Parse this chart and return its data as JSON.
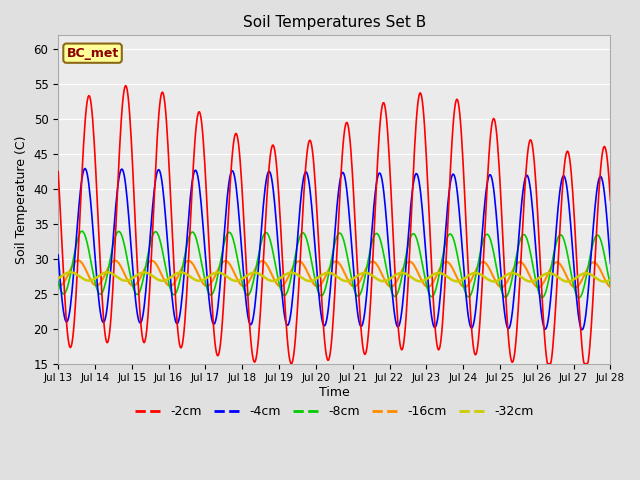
{
  "title": "Soil Temperatures Set B",
  "xlabel": "Time",
  "ylabel": "Soil Temperature (C)",
  "ylim": [
    15,
    62
  ],
  "yticks": [
    15,
    20,
    25,
    30,
    35,
    40,
    45,
    50,
    55,
    60
  ],
  "annotation_text": "BC_met",
  "annotation_bg": "#FFFF99",
  "annotation_border": "#8B6914",
  "series_colors": {
    "-2cm": "#FF0000",
    "-4cm": "#0000FF",
    "-8cm": "#00CC00",
    "-16cm": "#FF8C00",
    "-32cm": "#CCCC00"
  },
  "series_linewidths": {
    "-2cm": 1.2,
    "-4cm": 1.2,
    "-8cm": 1.2,
    "-16cm": 1.5,
    "-32cm": 1.8
  },
  "legend_order": [
    "-2cm",
    "-4cm",
    "-8cm",
    "-16cm",
    "-32cm"
  ],
  "legend_colors": [
    "#FF0000",
    "#0000FF",
    "#00CC00",
    "#FF8C00",
    "#CCCC00"
  ],
  "fig_bg": "#E0E0E0",
  "plot_bg": "#EBEBEB",
  "grid_color": "#FFFFFF",
  "xtick_labels": [
    "Jul 13",
    "Jul 14",
    "Jul 15",
    "Jul 16",
    "Jul 17",
    "Jul 18",
    "Jul 19",
    "Jul 20",
    "Jul 21",
    "Jul 22",
    "Jul 23",
    "Jul 24",
    "Jul 25",
    "Jul 26",
    "Jul 27",
    "Jul 28"
  ]
}
